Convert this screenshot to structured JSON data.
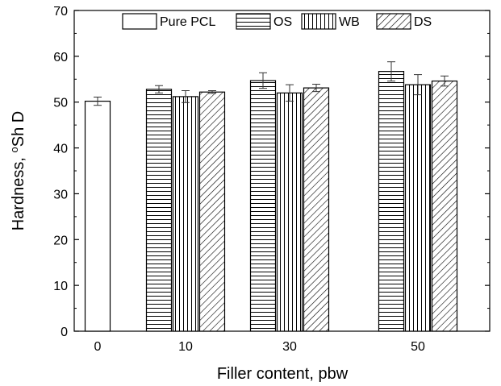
{
  "chart_data": {
    "type": "bar",
    "title": "",
    "xlabel": "Filler content, pbw",
    "ylabel_main": "Hardness, ",
    "ylabel_sup": "o",
    "ylabel_tail": "Sh D",
    "ylim": [
      0,
      70
    ],
    "yticks": [
      0,
      10,
      20,
      30,
      40,
      50,
      60,
      70
    ],
    "categories": [
      "0",
      "10",
      "30",
      "50"
    ],
    "legend_position": "top",
    "grid": false,
    "series": [
      {
        "name": "Pure PCL",
        "pattern": "none",
        "values": [
          50.2,
          null,
          null,
          null
        ],
        "errors": [
          0.9,
          null,
          null,
          null
        ]
      },
      {
        "name": "OS",
        "pattern": "horizontal",
        "values": [
          null,
          52.8,
          54.7,
          56.7
        ],
        "errors": [
          null,
          0.8,
          1.7,
          2.1
        ]
      },
      {
        "name": "WB",
        "pattern": "vertical",
        "values": [
          null,
          51.2,
          52.0,
          53.8
        ],
        "errors": [
          null,
          1.3,
          1.8,
          2.2
        ]
      },
      {
        "name": "DS",
        "pattern": "diagonal",
        "values": [
          null,
          52.2,
          53.1,
          54.6
        ],
        "errors": [
          null,
          0.3,
          0.8,
          1.1
        ]
      }
    ]
  }
}
